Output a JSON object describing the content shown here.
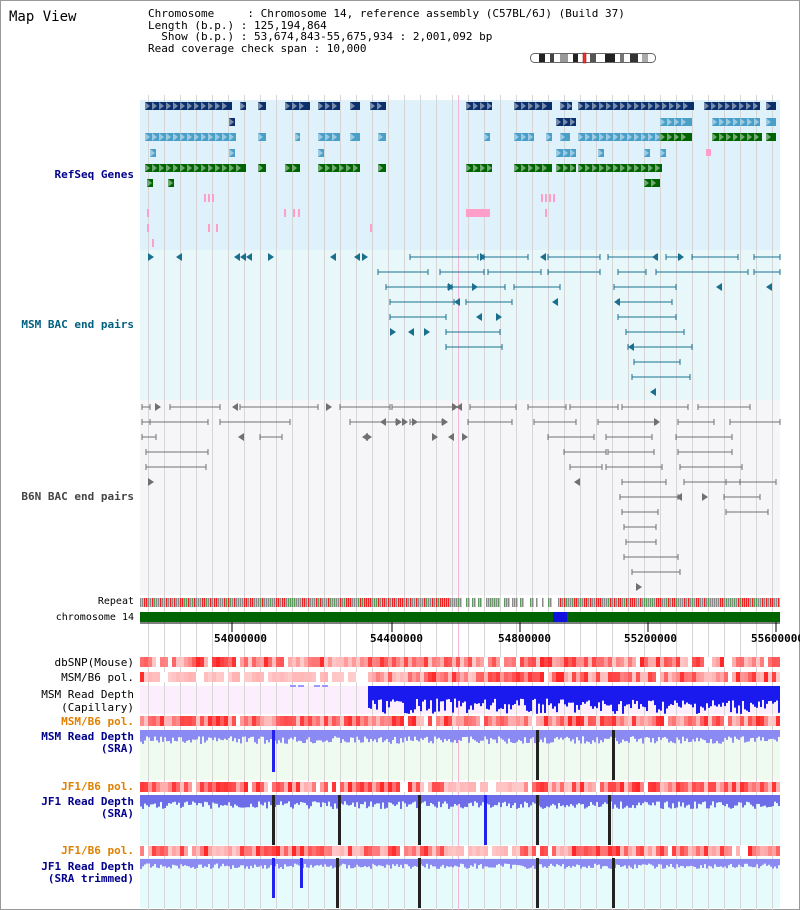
{
  "header": {
    "title": "Map View",
    "info_lines": [
      "Chromosome     : Chromosome 14, reference assembly (C57BL/6J) (Build 37)",
      "Length (b.p.) : 125,194,864",
      "  Show (b.p.) : 53,674,843-55,675,934 : 2,001,092 bp",
      "Read coverage check span : 10,000"
    ]
  },
  "tracks": {
    "refseq": "RefSeq Genes",
    "msm_bac": "MSM BAC end pairs",
    "b6n_bac": "B6N BAC end pairs",
    "repeat": "Repeat",
    "chromosome": "chromosome 14",
    "dbsnp": "dbSNP(Mouse)",
    "msm_b6_pol_1": "MSM/B6 pol.",
    "msm_depth_cap_1": "MSM Read Depth",
    "msm_depth_cap_2": "(Capillary)",
    "msm_b6_pol_2": "MSM/B6 pol.",
    "msm_depth_sra_1": "MSM Read Depth",
    "msm_depth_sra_2": "(SRA)",
    "jf1_b6_pol_1": "JF1/B6 pol.",
    "jf1_depth_1": "JF1 Read Depth",
    "jf1_depth_2": "(SRA)",
    "jf1_b6_pol_2": "JF1/B6 pol.",
    "jf1_trim_1": "JF1 Read Depth",
    "jf1_trim_2": "(SRA trimmed)"
  },
  "axis": {
    "ticks": [
      "54000000",
      "54400000",
      "54800000",
      "55200000",
      "55600000"
    ]
  },
  "colors": {
    "refseq_label": "#00008b",
    "msm_label": "#006080",
    "b6n_label": "#444444",
    "pol_label": "#e08000",
    "depth_label": "#00008b",
    "gene_dark": "#0a2f6b",
    "gene_mid": "#4a9fc8",
    "gene_green": "#006400",
    "gene_pink": "#ff9ec8",
    "msm_pair": "#1a6f8f",
    "b6n_pair": "#707070",
    "chromosome_bar": "#006400",
    "depth_blue": "#2222ee"
  }
}
